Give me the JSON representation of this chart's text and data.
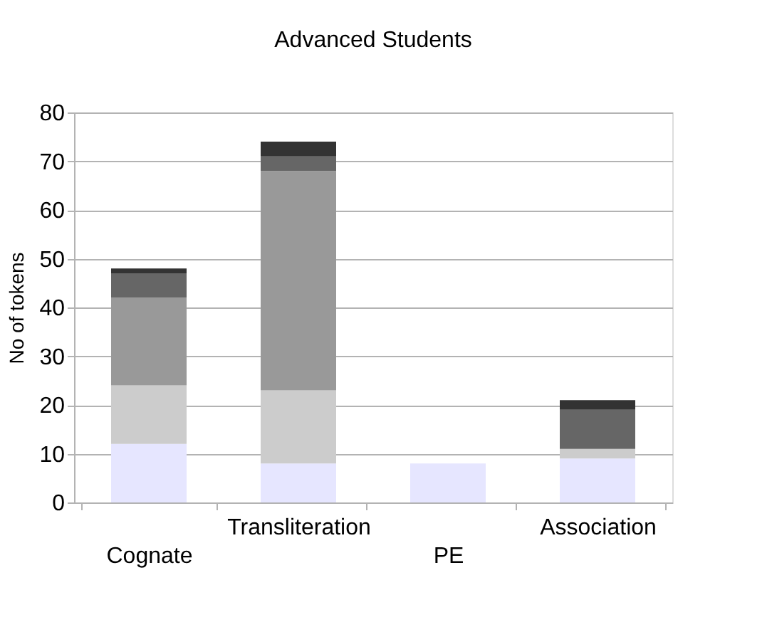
{
  "chart_data": {
    "type": "bar",
    "title": "Advanced Students",
    "ylabel": "No of tokens",
    "categories": [
      "Cognate",
      "Transliteration",
      "PE",
      "Association"
    ],
    "stacked": true,
    "series": [
      {
        "color": "#e6e6ff",
        "values": [
          12,
          8,
          8,
          9
        ]
      },
      {
        "color": "#cccccc",
        "values": [
          12,
          15,
          0,
          2
        ]
      },
      {
        "color": "#999999",
        "values": [
          18,
          45,
          0,
          0
        ]
      },
      {
        "color": "#666666",
        "values": [
          5,
          3,
          0,
          8
        ]
      },
      {
        "color": "#333333",
        "values": [
          1,
          3,
          0,
          2
        ]
      }
    ],
    "ylim": [
      0,
      80
    ],
    "yticks": [
      0,
      10,
      20,
      30,
      40,
      50,
      60,
      70,
      80
    ],
    "grid": "y",
    "legend": false
  }
}
